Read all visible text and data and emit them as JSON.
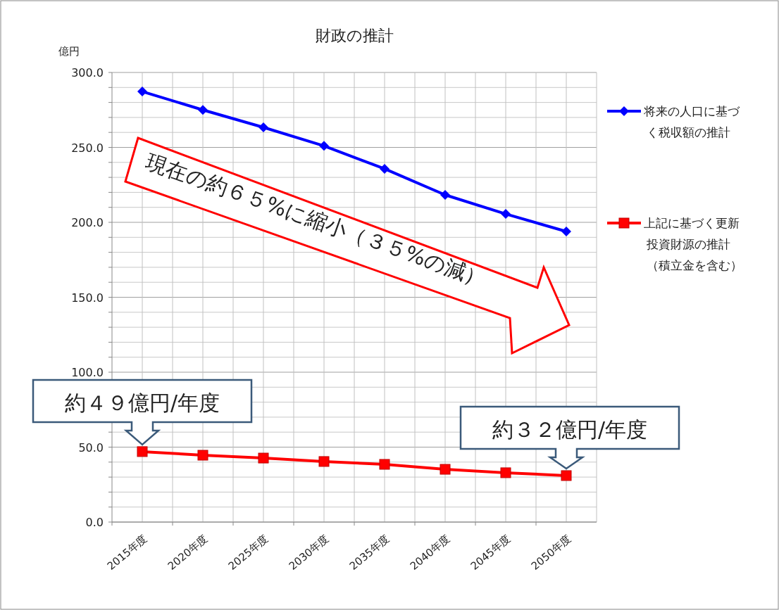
{
  "chart_data": {
    "type": "line",
    "title": "財政の推計",
    "ylabel": "億円",
    "categories": [
      "2015年度",
      "2020年度",
      "2025年度",
      "2030年度",
      "2035年度",
      "2040年度",
      "2045年度",
      "2050年度"
    ],
    "series": [
      {
        "name": "将来の人口に基づく税収額の推計",
        "color": "#0000ff",
        "marker": "diamond",
        "values": [
          287.3,
          275.0,
          263.4,
          251.0,
          235.7,
          218.3,
          205.6,
          193.9
        ]
      },
      {
        "name": "上記に基づく更新投資財源の推計（積立金を含む）",
        "color": "#ff0000",
        "marker": "square",
        "values": [
          47.0,
          44.6,
          42.7,
          40.4,
          38.5,
          35.2,
          32.9,
          31.0
        ]
      }
    ],
    "ylim": [
      0,
      300
    ],
    "yticks": [
      {
        "value": 0,
        "label": "0.0"
      },
      {
        "value": 10,
        "label": null
      },
      {
        "value": 20,
        "label": null
      },
      {
        "value": 30,
        "label": null
      },
      {
        "value": 40,
        "label": null
      },
      {
        "value": 50,
        "label": "50.0"
      },
      {
        "value": 60,
        "label": null
      },
      {
        "value": 70,
        "label": null
      },
      {
        "value": 80,
        "label": null
      },
      {
        "value": 90,
        "label": null
      },
      {
        "value": 100,
        "label": "100.0"
      },
      {
        "value": 110,
        "label": null
      },
      {
        "value": 120,
        "label": null
      },
      {
        "value": 130,
        "label": null
      },
      {
        "value": 140,
        "label": null
      },
      {
        "value": 150,
        "label": "150.0"
      },
      {
        "value": 160,
        "label": null
      },
      {
        "value": 170,
        "label": null
      },
      {
        "value": 180,
        "label": null
      },
      {
        "value": 190,
        "label": null
      },
      {
        "value": 200,
        "label": "200.0"
      },
      {
        "value": 210,
        "label": null
      },
      {
        "value": 220,
        "label": null
      },
      {
        "value": 230,
        "label": null
      },
      {
        "value": 240,
        "label": null
      },
      {
        "value": 250,
        "label": "250.0"
      },
      {
        "value": 260,
        "label": null
      },
      {
        "value": 270,
        "label": null
      },
      {
        "value": 280,
        "label": null
      },
      {
        "value": 290,
        "label": null
      },
      {
        "value": 300,
        "label": "300.0"
      }
    ],
    "grid": true,
    "legend": "right",
    "line_style": "solid",
    "annotations": [
      "現在の約６５%に縮小（３５%の減）",
      {
        "text": "約４９億円/年度",
        "x": "2015年度",
        "y": 47.0
      },
      {
        "text": "約３２億円/年度",
        "x": "2050年度",
        "y": 31.0
      }
    ]
  }
}
